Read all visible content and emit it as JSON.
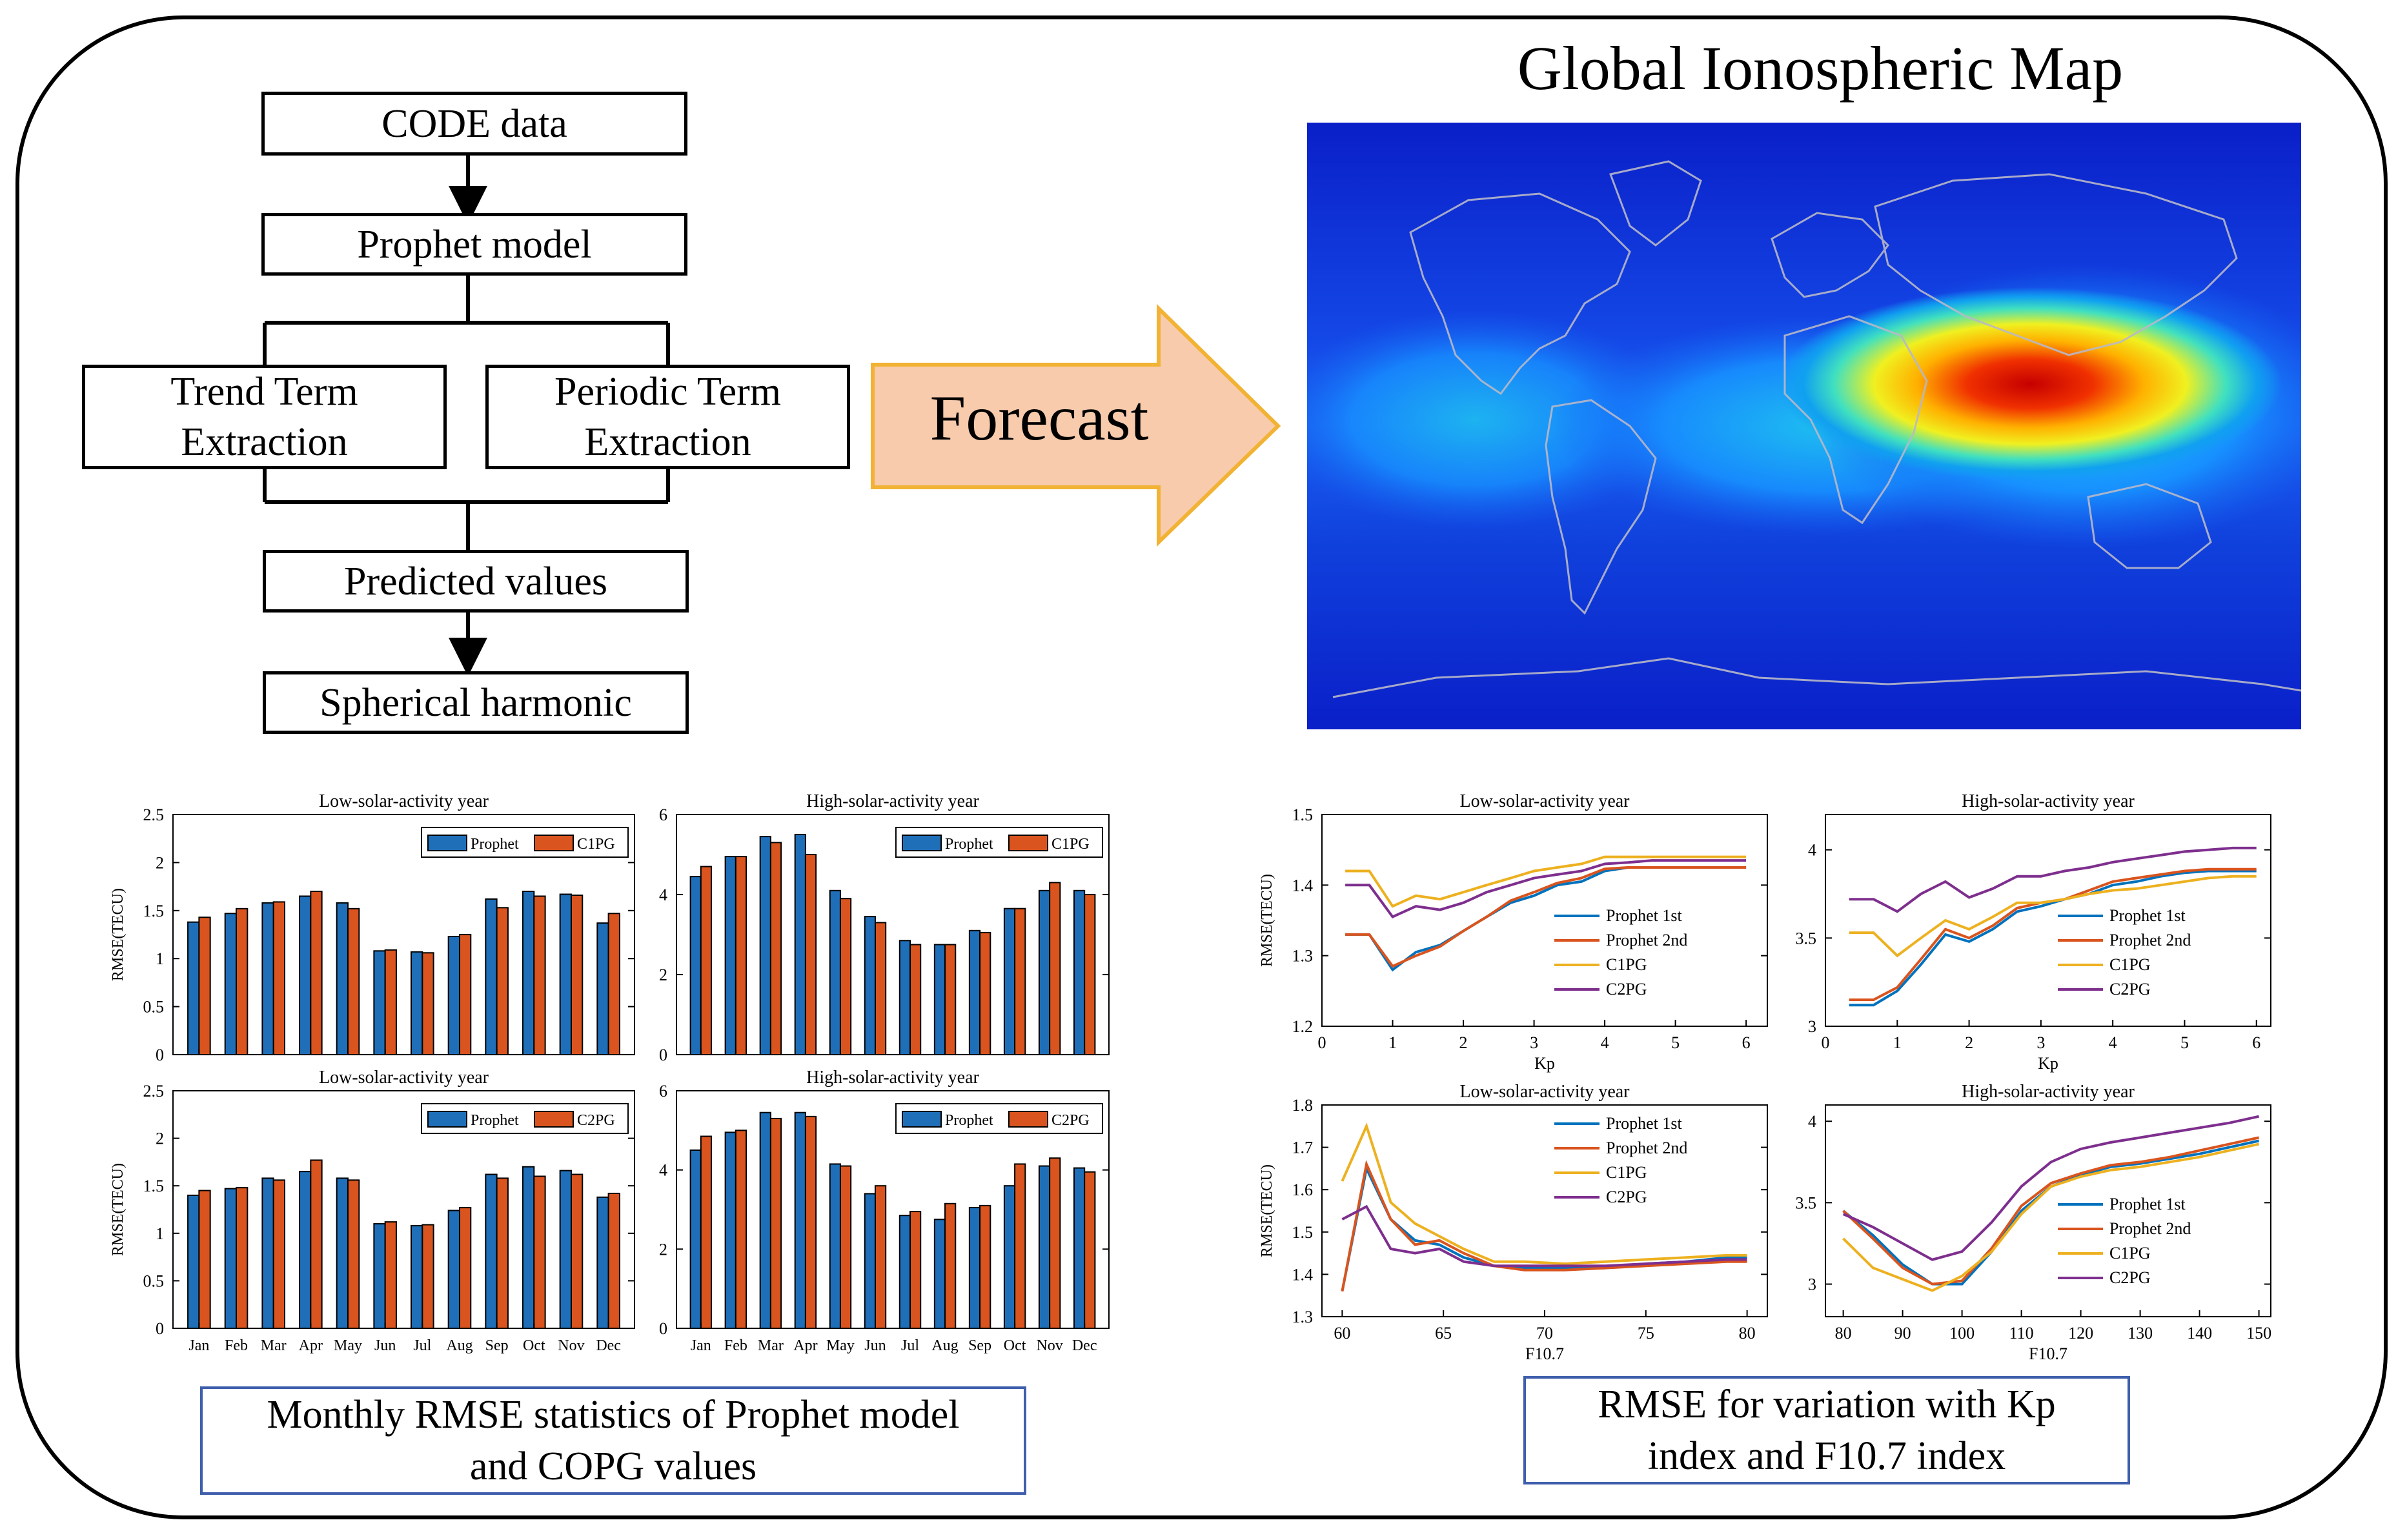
{
  "flowchart": {
    "code_data": "CODE data",
    "prophet_model": "Prophet model",
    "trend_term": "Trend Term\nExtraction",
    "periodic_term": "Periodic Term\nExtraction",
    "predicted_values": "Predicted values",
    "spherical_harmonic": "Spherical harmonic"
  },
  "forecast_label": "Forecast",
  "map_title": "Global Ionospheric Map",
  "captions": {
    "monthly": "Monthly RMSE statistics of  Prophet model\nand COPG values",
    "kp_f107": "RMSE for variation with Kp\nindex and F10.7 index"
  },
  "colors": {
    "prophet": "#1f6fb8",
    "copg": "#d9541e",
    "prophet2nd": "#d9541e",
    "c1pg": "#edb120",
    "c2pg": "#7e2f8e",
    "p1": "#0072bd",
    "caption_border": "#3f5fad",
    "arrow_fill": "#f8cbad",
    "arrow_edge": "#f2b233"
  },
  "chart_data": [
    {
      "id": "bar_low_c1pg",
      "type": "bar",
      "title": "Low-solar-activity year",
      "ylabel": "RMSE(TECU)",
      "categories": [
        "Jan",
        "Feb",
        "Mar",
        "Apr",
        "May",
        "Jun",
        "Jul",
        "Aug",
        "Sep",
        "Oct",
        "Nov",
        "Dec"
      ],
      "show_xticks": false,
      "ylim": [
        0,
        2.5
      ],
      "yticks": [
        "0",
        "0.5",
        "1",
        "1.5",
        "2",
        "2.5"
      ],
      "series": [
        {
          "name": "Prophet",
          "values": [
            1.38,
            1.47,
            1.58,
            1.65,
            1.58,
            1.08,
            1.07,
            1.23,
            1.62,
            1.7,
            1.67,
            1.37
          ]
        },
        {
          "name": "C1PG",
          "values": [
            1.43,
            1.52,
            1.59,
            1.7,
            1.52,
            1.09,
            1.06,
            1.25,
            1.53,
            1.65,
            1.66,
            1.47
          ]
        }
      ]
    },
    {
      "id": "bar_high_c1pg",
      "type": "bar",
      "title": "High-solar-activity year",
      "ylabel": "",
      "categories": [
        "Jan",
        "Feb",
        "Mar",
        "Apr",
        "May",
        "Jun",
        "Jul",
        "Aug",
        "Sep",
        "Oct",
        "Nov",
        "Dec"
      ],
      "show_xticks": false,
      "ylim": [
        0,
        6
      ],
      "yticks": [
        "0",
        "2",
        "4",
        "6"
      ],
      "series": [
        {
          "name": "Prophet",
          "values": [
            4.45,
            4.95,
            5.45,
            5.5,
            4.1,
            3.45,
            2.85,
            2.75,
            3.1,
            3.65,
            4.1,
            4.1
          ]
        },
        {
          "name": "C1PG",
          "values": [
            4.7,
            4.95,
            5.3,
            5.0,
            3.9,
            3.3,
            2.75,
            2.75,
            3.05,
            3.65,
            4.3,
            4.0
          ]
        }
      ]
    },
    {
      "id": "bar_low_c2pg",
      "type": "bar",
      "title": "Low-solar-activity year",
      "ylabel": "RMSE(TECU)",
      "categories": [
        "Jan",
        "Feb",
        "Mar",
        "Apr",
        "May",
        "Jun",
        "Jul",
        "Aug",
        "Sep",
        "Oct",
        "Nov",
        "Dec"
      ],
      "show_xticks": true,
      "ylim": [
        0,
        2.5
      ],
      "yticks": [
        "0",
        "0.5",
        "1",
        "1.5",
        "2",
        "2.5"
      ],
      "series": [
        {
          "name": "Prophet",
          "values": [
            1.4,
            1.47,
            1.58,
            1.65,
            1.58,
            1.1,
            1.08,
            1.24,
            1.62,
            1.7,
            1.66,
            1.38
          ]
        },
        {
          "name": "C2PG",
          "values": [
            1.45,
            1.48,
            1.56,
            1.77,
            1.56,
            1.12,
            1.09,
            1.27,
            1.58,
            1.6,
            1.62,
            1.42
          ]
        }
      ]
    },
    {
      "id": "bar_high_c2pg",
      "type": "bar",
      "title": "High-solar-activity year",
      "ylabel": "",
      "categories": [
        "Jan",
        "Feb",
        "Mar",
        "Apr",
        "May",
        "Jun",
        "Jul",
        "Aug",
        "Sep",
        "Oct",
        "Nov",
        "Dec"
      ],
      "show_xticks": true,
      "ylim": [
        0,
        6
      ],
      "yticks": [
        "0",
        "2",
        "4",
        "6"
      ],
      "series": [
        {
          "name": "Prophet",
          "values": [
            4.5,
            4.95,
            5.45,
            5.45,
            4.15,
            3.4,
            2.85,
            2.75,
            3.05,
            3.6,
            4.1,
            4.05
          ]
        },
        {
          "name": "C2PG",
          "values": [
            4.85,
            5.0,
            5.3,
            5.35,
            4.1,
            3.6,
            2.95,
            3.15,
            3.1,
            4.15,
            4.3,
            3.95
          ]
        }
      ]
    },
    {
      "id": "line_low_kp",
      "type": "line",
      "title": "Low-solar-activity year",
      "xlabel": "Kp",
      "ylabel": "RMSE(TECU)",
      "xlim": [
        0,
        6.3
      ],
      "xticks": [
        0,
        1,
        2,
        3,
        4,
        5,
        6
      ],
      "ylim": [
        1.2,
        1.5
      ],
      "yticks": [
        1.2,
        1.3,
        1.4,
        1.5
      ],
      "ytick_labels": [
        "1.2",
        "1.3",
        "1.4",
        "1.5"
      ],
      "x": [
        0.33,
        0.67,
        1,
        1.33,
        1.67,
        2,
        2.33,
        2.67,
        3,
        3.33,
        3.67,
        4,
        4.33,
        4.67,
        5,
        5.33,
        5.67,
        6
      ],
      "series": [
        {
          "name": "Prophet 1st",
          "values": [
            1.33,
            1.33,
            1.28,
            1.305,
            1.315,
            1.335,
            1.355,
            1.375,
            1.385,
            1.4,
            1.405,
            1.42,
            1.425,
            1.425,
            1.425,
            1.425,
            1.425,
            1.425
          ]
        },
        {
          "name": "Prophet 2nd",
          "values": [
            1.33,
            1.33,
            1.285,
            1.3,
            1.313,
            1.335,
            1.355,
            1.378,
            1.39,
            1.403,
            1.41,
            1.423,
            1.425,
            1.425,
            1.425,
            1.425,
            1.425,
            1.425
          ]
        },
        {
          "name": "C1PG",
          "values": [
            1.42,
            1.42,
            1.37,
            1.385,
            1.38,
            1.39,
            1.4,
            1.41,
            1.42,
            1.425,
            1.43,
            1.44,
            1.44,
            1.44,
            1.44,
            1.44,
            1.44,
            1.44
          ]
        },
        {
          "name": "C2PG",
          "values": [
            1.4,
            1.4,
            1.355,
            1.37,
            1.365,
            1.375,
            1.39,
            1.4,
            1.41,
            1.415,
            1.42,
            1.43,
            1.432,
            1.435,
            1.435,
            1.435,
            1.435,
            1.435
          ]
        }
      ],
      "legend": "bottom-right"
    },
    {
      "id": "line_high_kp",
      "type": "line",
      "title": "High-solar-activity year",
      "xlabel": "Kp",
      "ylabel": "",
      "xlim": [
        0,
        6.2
      ],
      "xticks": [
        0,
        1,
        2,
        3,
        4,
        5,
        6
      ],
      "ylim": [
        3.0,
        4.2
      ],
      "yticks": [
        3,
        3.5,
        4
      ],
      "ytick_labels": [
        "3",
        "3.5",
        "4"
      ],
      "x": [
        0.33,
        0.67,
        1,
        1.33,
        1.67,
        2,
        2.33,
        2.67,
        3,
        3.33,
        3.67,
        4,
        4.33,
        4.67,
        5,
        5.33,
        5.67,
        6
      ],
      "series": [
        {
          "name": "Prophet 1st",
          "values": [
            3.12,
            3.12,
            3.2,
            3.35,
            3.52,
            3.48,
            3.55,
            3.65,
            3.68,
            3.72,
            3.75,
            3.8,
            3.82,
            3.85,
            3.87,
            3.88,
            3.88,
            3.88
          ]
        },
        {
          "name": "Prophet 2nd",
          "values": [
            3.15,
            3.15,
            3.22,
            3.38,
            3.55,
            3.5,
            3.57,
            3.67,
            3.7,
            3.72,
            3.77,
            3.82,
            3.84,
            3.86,
            3.88,
            3.89,
            3.89,
            3.89
          ]
        },
        {
          "name": "C1PG",
          "values": [
            3.53,
            3.53,
            3.4,
            3.5,
            3.6,
            3.55,
            3.62,
            3.7,
            3.7,
            3.72,
            3.75,
            3.77,
            3.78,
            3.8,
            3.82,
            3.84,
            3.85,
            3.85
          ]
        },
        {
          "name": "C2PG",
          "values": [
            3.72,
            3.72,
            3.65,
            3.75,
            3.82,
            3.73,
            3.78,
            3.85,
            3.85,
            3.88,
            3.9,
            3.93,
            3.95,
            3.97,
            3.99,
            4.0,
            4.01,
            4.01
          ]
        }
      ],
      "legend": "bottom-right"
    },
    {
      "id": "line_low_f107",
      "type": "line",
      "title": "Low-solar-activity year",
      "xlabel": "F10.7",
      "ylabel": "RMSE(TECU)",
      "xlim": [
        59,
        81
      ],
      "xticks": [
        60,
        65,
        70,
        75,
        80
      ],
      "ylim": [
        1.3,
        1.8
      ],
      "yticks": [
        1.3,
        1.4,
        1.5,
        1.6,
        1.7,
        1.8
      ],
      "ytick_labels": [
        "1.3",
        "1.4",
        "1.5",
        "1.6",
        "1.7",
        "1.8"
      ],
      "x": [
        60,
        61.2,
        62.4,
        63.6,
        64.8,
        66,
        67.5,
        69,
        71,
        73,
        75,
        77,
        79,
        80
      ],
      "series": [
        {
          "name": "Prophet 1st",
          "values": [
            1.36,
            1.65,
            1.53,
            1.48,
            1.47,
            1.44,
            1.42,
            1.415,
            1.415,
            1.415,
            1.425,
            1.43,
            1.44,
            1.44
          ]
        },
        {
          "name": "Prophet 2nd",
          "values": [
            1.36,
            1.66,
            1.53,
            1.47,
            1.48,
            1.45,
            1.42,
            1.41,
            1.41,
            1.415,
            1.42,
            1.425,
            1.43,
            1.43
          ]
        },
        {
          "name": "C1PG",
          "values": [
            1.62,
            1.75,
            1.57,
            1.52,
            1.49,
            1.46,
            1.43,
            1.43,
            1.425,
            1.43,
            1.435,
            1.44,
            1.445,
            1.445
          ]
        },
        {
          "name": "C2PG",
          "values": [
            1.53,
            1.56,
            1.46,
            1.45,
            1.46,
            1.43,
            1.42,
            1.42,
            1.42,
            1.42,
            1.425,
            1.43,
            1.435,
            1.435
          ]
        }
      ],
      "legend": "top-right"
    },
    {
      "id": "line_high_f107",
      "type": "line",
      "title": "High-solar-activity year",
      "xlabel": "F10.7",
      "ylabel": "",
      "xlim": [
        77,
        152
      ],
      "xticks": [
        80,
        90,
        100,
        110,
        120,
        130,
        140,
        150
      ],
      "ytick_labels": [
        "3",
        "3.5",
        "4"
      ],
      "ylim": [
        2.8,
        4.1
      ],
      "yticks": [
        3,
        3.5,
        4
      ],
      "x": [
        80,
        85,
        90,
        95,
        100,
        105,
        110,
        115,
        120,
        125,
        130,
        135,
        140,
        145,
        150
      ],
      "series": [
        {
          "name": "Prophet 1st",
          "values": [
            3.45,
            3.3,
            3.12,
            3.0,
            3.0,
            3.2,
            3.45,
            3.6,
            3.67,
            3.72,
            3.74,
            3.77,
            3.8,
            3.84,
            3.88
          ]
        },
        {
          "name": "Prophet 2nd",
          "values": [
            3.45,
            3.28,
            3.1,
            3.0,
            3.02,
            3.22,
            3.48,
            3.62,
            3.68,
            3.73,
            3.75,
            3.78,
            3.82,
            3.86,
            3.9
          ]
        },
        {
          "name": "C1PG",
          "values": [
            3.28,
            3.1,
            3.03,
            2.96,
            3.05,
            3.2,
            3.43,
            3.6,
            3.66,
            3.7,
            3.72,
            3.75,
            3.78,
            3.82,
            3.86
          ]
        },
        {
          "name": "C2PG",
          "values": [
            3.43,
            3.35,
            3.25,
            3.15,
            3.2,
            3.38,
            3.6,
            3.75,
            3.83,
            3.87,
            3.9,
            3.93,
            3.96,
            3.99,
            4.03
          ]
        }
      ],
      "legend": "right"
    }
  ]
}
